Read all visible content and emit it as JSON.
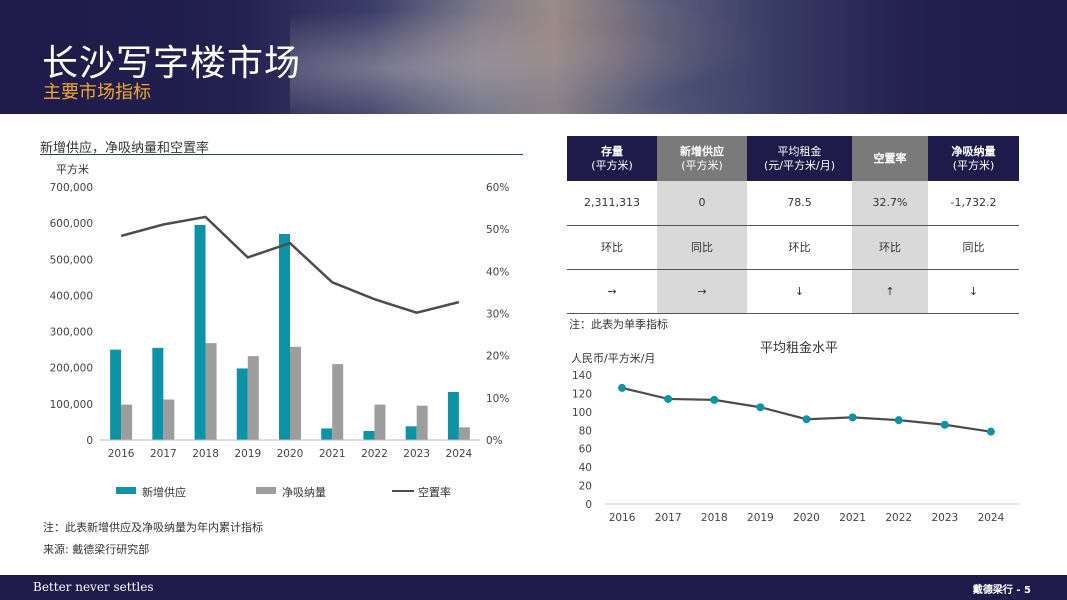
{
  "header": {
    "title": "长沙写字楼市场",
    "subtitle": "主要市场指标"
  },
  "footer": {
    "slogan": "Better never settles",
    "page": "戴德梁行 - 5"
  },
  "left_chart": {
    "title": "新增供应，净吸纳量和空置率",
    "note": "注：此表新增供应及净吸纳量为年内累计指标",
    "source": "来源: 戴德梁行研究部"
  },
  "right_chart": {
    "title": "平均租金水平",
    "unit": "人民币/平方米/月"
  },
  "table": {
    "headers": [
      {
        "l1": "存量",
        "l2": "(平方米)",
        "style": "dark",
        "bold": true
      },
      {
        "l1": "新增供应",
        "l2": "(平方米)",
        "style": "grey",
        "bold": true
      },
      {
        "l1": "平均租金",
        "l2": "(元/平方米/月)",
        "style": "dark",
        "bold": false
      },
      {
        "l1": "空置率",
        "l2": "",
        "style": "grey",
        "bold": true
      },
      {
        "l1": "净吸纳量",
        "l2": "(平方米)",
        "style": "dark",
        "bold": true
      }
    ],
    "values": [
      "2,311,313",
      "0",
      "78.5",
      "32.7%",
      "-1,732.2"
    ],
    "comparisons": [
      "环比",
      "同比",
      "环比",
      "环比",
      "同比"
    ],
    "trends": [
      "→",
      "→",
      "↓",
      "↑",
      "↓"
    ],
    "note": "注：此表为单季指标"
  },
  "chart_data": [
    {
      "type": "bar",
      "ylabel": "平方米",
      "categories": [
        "2016",
        "2017",
        "2018",
        "2019",
        "2020",
        "2021",
        "2022",
        "2023",
        "2024"
      ],
      "ylim": [
        0,
        700000
      ],
      "y_ticks": [
        "0",
        "100,000",
        "200,000",
        "300,000",
        "400,000",
        "500,000",
        "600,000",
        "700,000"
      ],
      "y2lim": [
        0,
        0.6
      ],
      "y2_ticks": [
        "0%",
        "10%",
        "20%",
        "30%",
        "40%",
        "50%",
        "60%"
      ],
      "series": [
        {
          "name": "新增供应",
          "kind": "bar",
          "color": "#0e93a6",
          "values": [
            250000,
            255000,
            595000,
            198000,
            570000,
            32000,
            25000,
            38000,
            133000
          ]
        },
        {
          "name": "净吸纳量",
          "kind": "bar",
          "color": "#9d9d9d",
          "values": [
            98000,
            112000,
            268000,
            232000,
            258000,
            210000,
            98000,
            95000,
            35000
          ]
        },
        {
          "name": "空置率",
          "kind": "line",
          "axis": "right",
          "color": "#4d4d4d",
          "values": [
            0.484,
            0.511,
            0.529,
            0.433,
            0.467,
            0.374,
            0.334,
            0.302,
            0.327
          ]
        }
      ],
      "legend": "bottom"
    },
    {
      "type": "line",
      "categories": [
        "2016",
        "2017",
        "2018",
        "2019",
        "2020",
        "2021",
        "2022",
        "2023",
        "2024"
      ],
      "ylim": [
        0,
        140
      ],
      "y_ticks": [
        "0",
        "20",
        "40",
        "60",
        "80",
        "100",
        "120",
        "140"
      ],
      "series": [
        {
          "color": "#0e93a6",
          "line_color": "#4d4d4d",
          "values": [
            126,
            114,
            113,
            105,
            92,
            94,
            91,
            86,
            78.5
          ]
        }
      ]
    }
  ]
}
